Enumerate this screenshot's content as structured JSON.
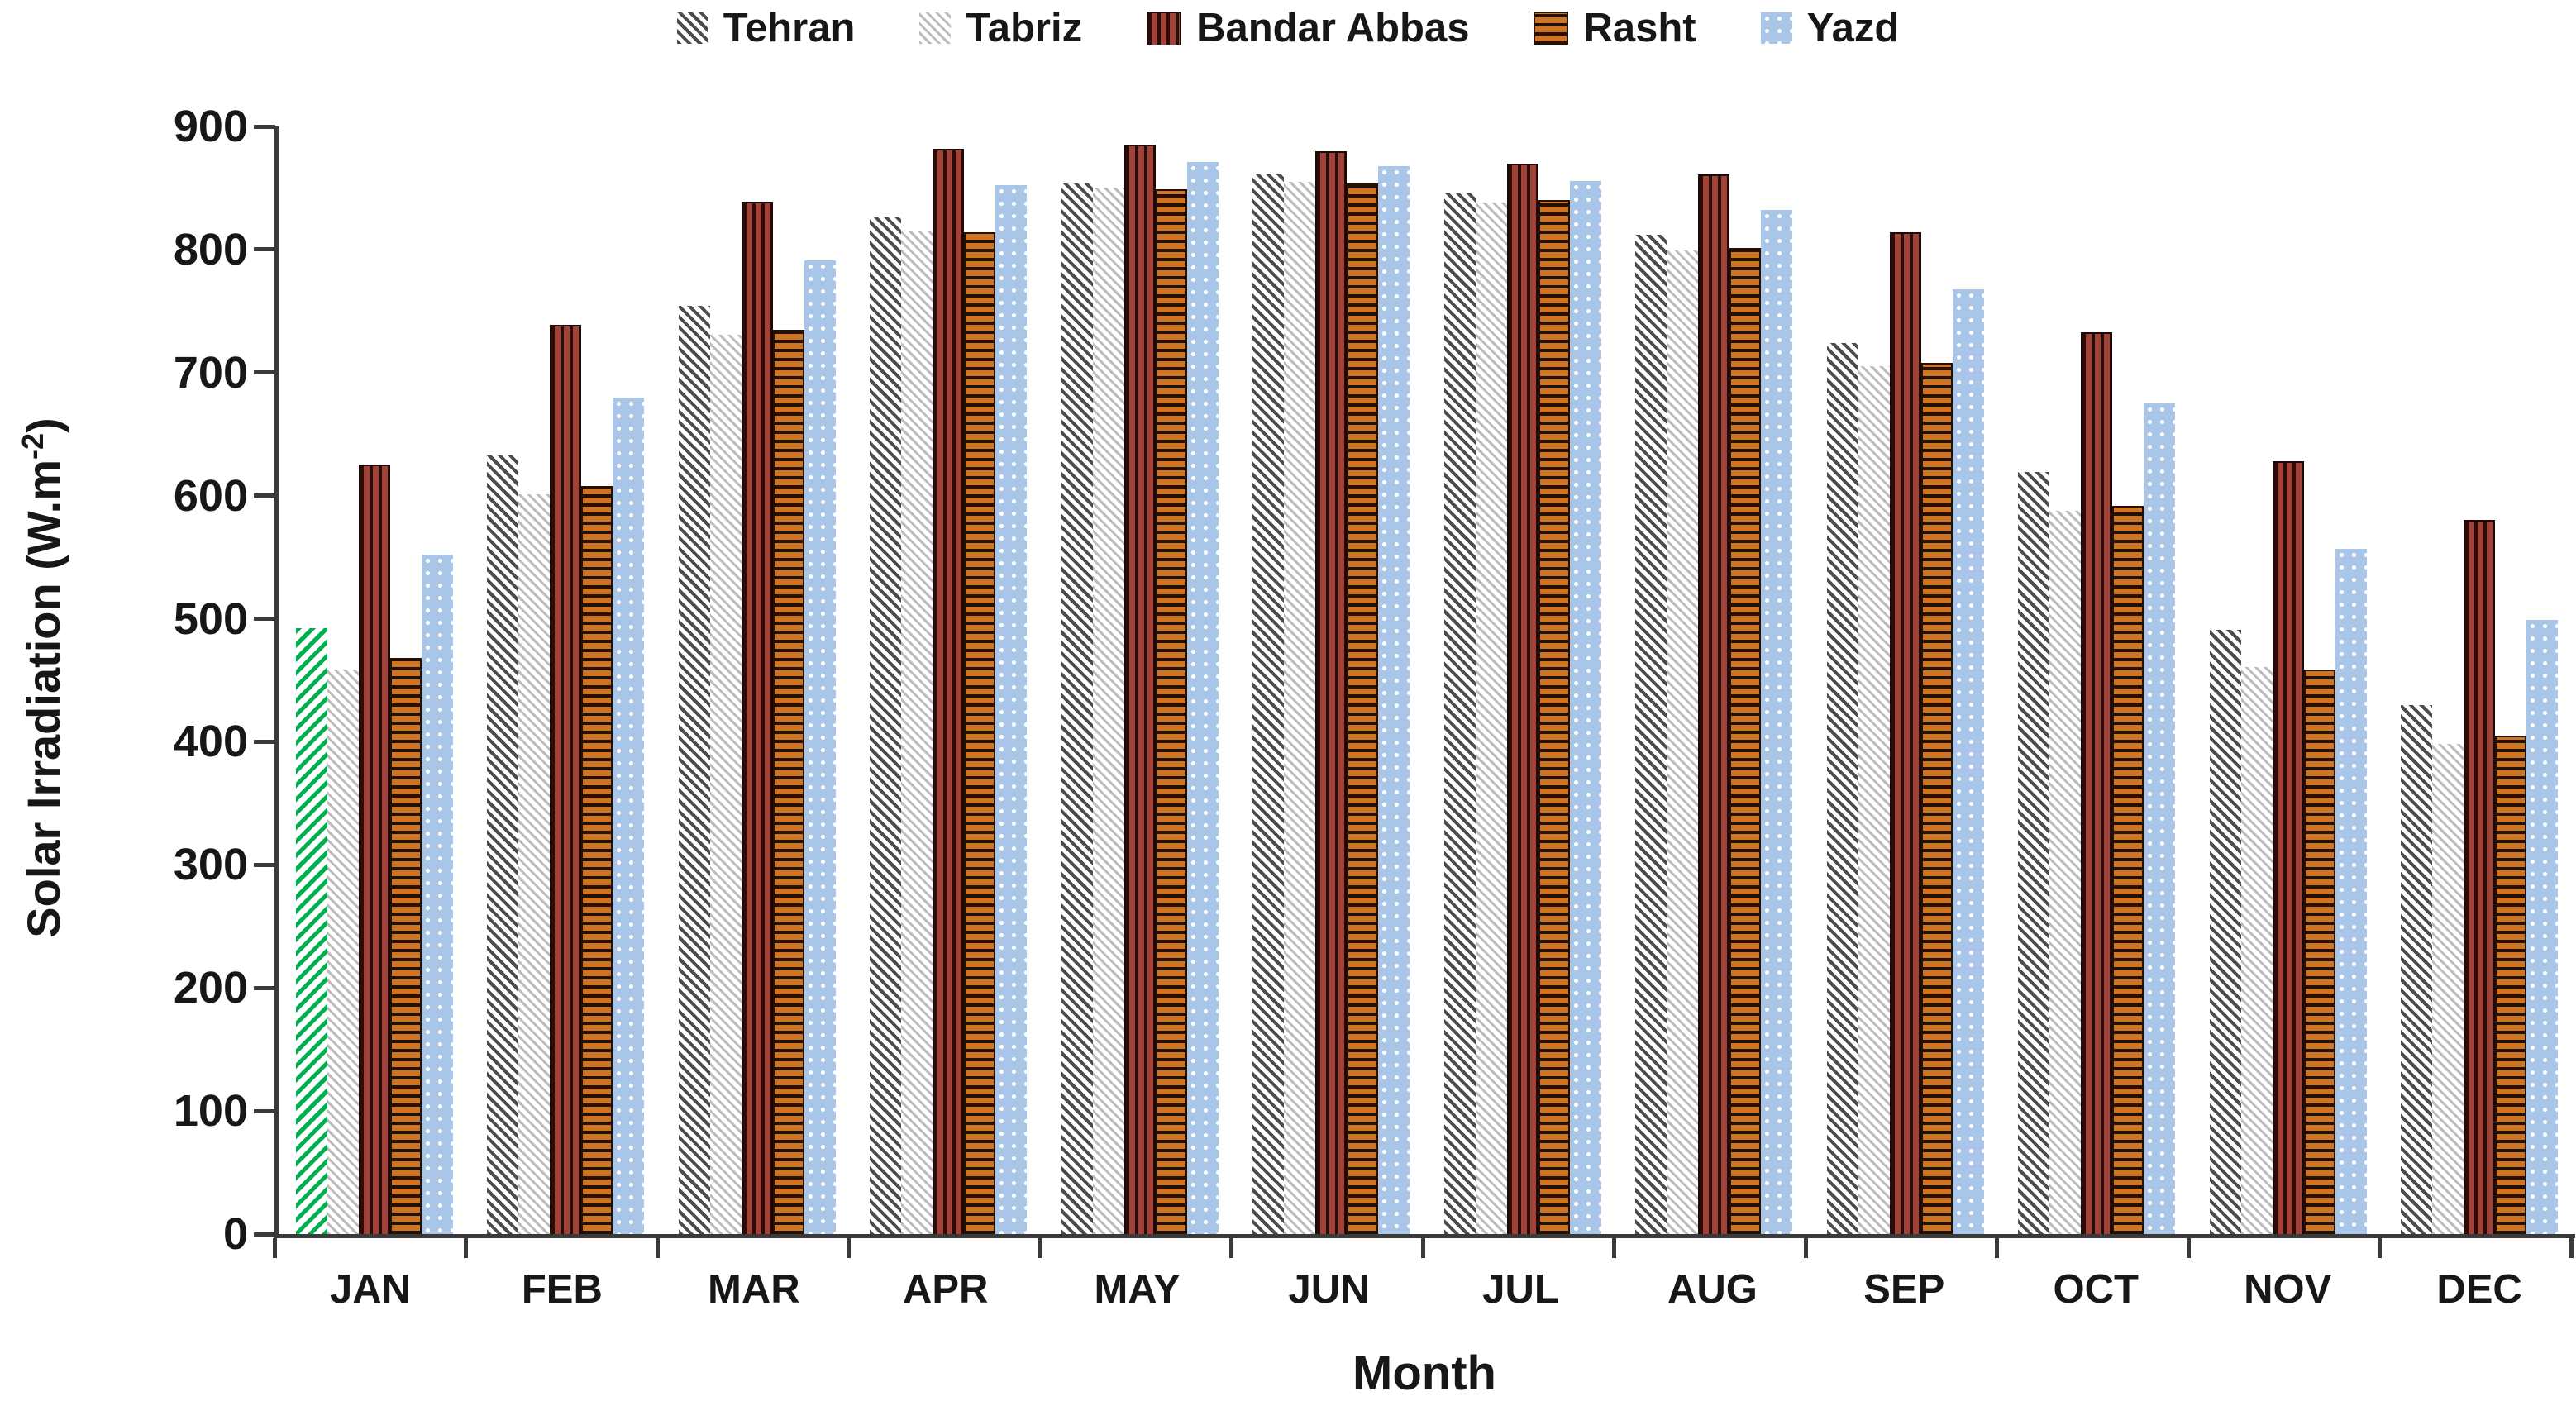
{
  "chart_data": {
    "type": "bar",
    "title": "",
    "xlabel": "Month",
    "ylabel": "Solar Irradiation (W.m-2)",
    "ylabel_parts": {
      "main": "Solar Irradiation (W.m",
      "sup": "-2",
      "close": ")"
    },
    "ylim": [
      0,
      900
    ],
    "ytick_step": 100,
    "yticks": [
      0,
      100,
      200,
      300,
      400,
      500,
      600,
      700,
      800,
      900
    ],
    "grid": "off",
    "legend_position": "top-center",
    "categories": [
      "JAN",
      "FEB",
      "MAR",
      "APR",
      "MAY",
      "JUN",
      "JUL",
      "AUG",
      "SEP",
      "OCT",
      "NOV",
      "DEC"
    ],
    "series": [
      {
        "name": "Tehran",
        "key": "tehran",
        "pattern": "dark-gray-diagonal-hatch",
        "fg": "#4c4c4c",
        "bg": "#ffffff",
        "values": [
          492,
          633,
          754,
          826,
          854,
          861,
          846,
          812,
          724,
          619,
          491,
          430
        ]
      },
      {
        "name": "Tabriz",
        "key": "tabriz",
        "pattern": "light-gray-diagonal-hatch",
        "fg": "#bcbcbc",
        "bg": "#ffffff",
        "values": [
          459,
          601,
          731,
          815,
          850,
          855,
          838,
          799,
          705,
          588,
          461,
          398
        ]
      },
      {
        "name": "Bandar Abbas",
        "key": "bandar",
        "pattern": "black-vertical-stripes-on-dark-red",
        "fg": "#2a0d09",
        "bg": "#a04237",
        "values": [
          625,
          739,
          839,
          882,
          885,
          880,
          870,
          861,
          814,
          733,
          628,
          580
        ]
      },
      {
        "name": "Rasht",
        "key": "rasht",
        "pattern": "black-chevrons-on-orange",
        "fg": "#221104",
        "bg": "#cf7422",
        "values": [
          468,
          608,
          735,
          814,
          849,
          854,
          840,
          801,
          708,
          592,
          459,
          405
        ]
      },
      {
        "name": "Yazd",
        "key": "yazd",
        "pattern": "white-dots-on-light-blue",
        "fg": "#ffffff",
        "bg": "#a9c5e8",
        "values": [
          552,
          680,
          791,
          852,
          871,
          868,
          856,
          832,
          768,
          675,
          557,
          499
        ]
      }
    ],
    "highlight": {
      "series": "Tehran",
      "category": "JAN",
      "pattern": "green-diagonal-hatch",
      "color": "#00b050",
      "note": "The JAN Tehran bar is drawn with a green diagonal hatch instead of the dark gray hatch"
    }
  },
  "legend": {
    "items": [
      {
        "label": "Tehran",
        "key": "tehran"
      },
      {
        "label": "Tabriz",
        "key": "tabriz"
      },
      {
        "label": "Bandar Abbas",
        "key": "bandar"
      },
      {
        "label": "Rasht",
        "key": "rasht"
      },
      {
        "label": "Yazd",
        "key": "yazd"
      }
    ]
  },
  "axis_colors": {
    "line": "#3a3a3a",
    "text": "#171717"
  }
}
